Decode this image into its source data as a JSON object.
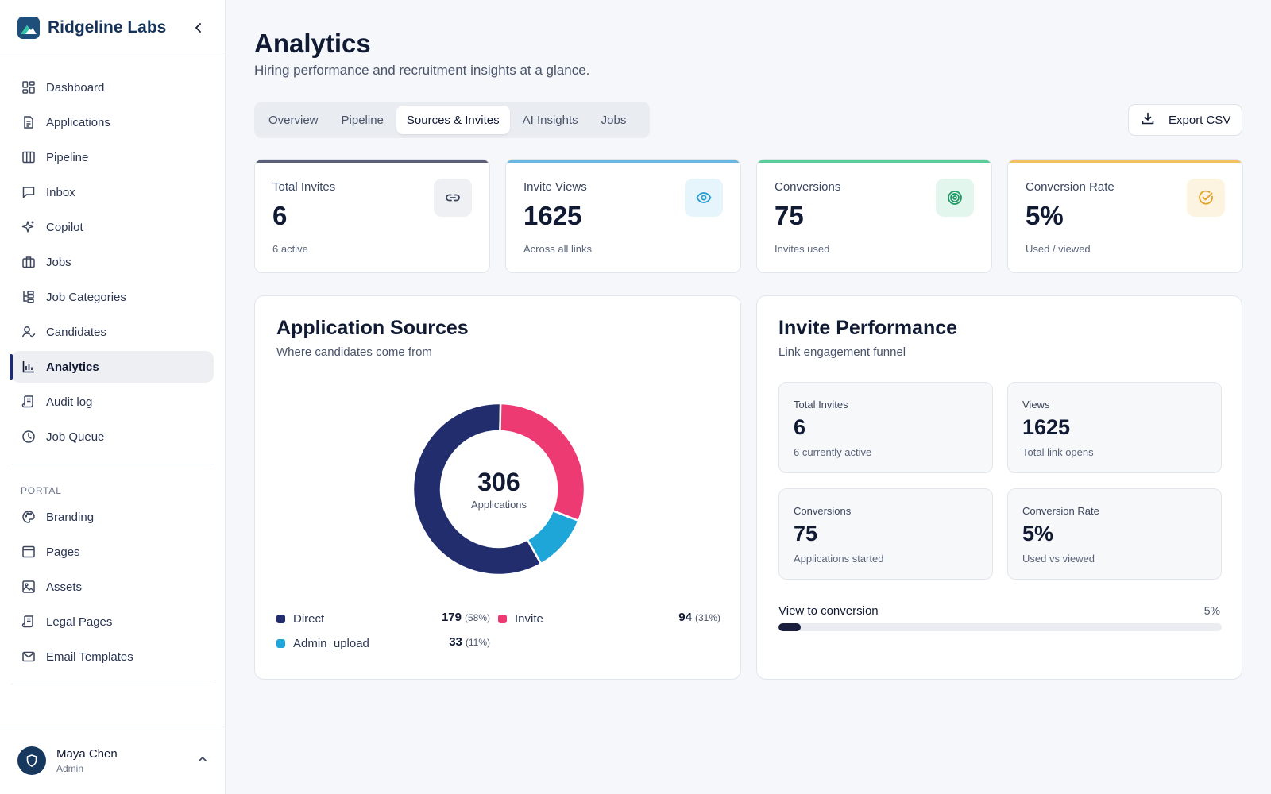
{
  "brand": {
    "name": "Ridgeline Labs"
  },
  "sidebar": {
    "items": [
      {
        "label": "Dashboard",
        "icon": "dashboard-icon"
      },
      {
        "label": "Applications",
        "icon": "document-icon"
      },
      {
        "label": "Pipeline",
        "icon": "columns-icon"
      },
      {
        "label": "Inbox",
        "icon": "message-icon"
      },
      {
        "label": "Copilot",
        "icon": "sparkle-icon"
      },
      {
        "label": "Jobs",
        "icon": "briefcase-icon"
      },
      {
        "label": "Job Categories",
        "icon": "tree-icon"
      },
      {
        "label": "Candidates",
        "icon": "user-check-icon"
      },
      {
        "label": "Analytics",
        "icon": "bar-chart-icon",
        "active": true
      },
      {
        "label": "Audit log",
        "icon": "scroll-icon"
      },
      {
        "label": "Job Queue",
        "icon": "clock-icon"
      }
    ],
    "portal_label": "PORTAL",
    "portal_items": [
      {
        "label": "Branding",
        "icon": "palette-icon"
      },
      {
        "label": "Pages",
        "icon": "layout-icon"
      },
      {
        "label": "Assets",
        "icon": "image-icon"
      },
      {
        "label": "Legal Pages",
        "icon": "scroll-icon"
      },
      {
        "label": "Email Templates",
        "icon": "mail-icon"
      }
    ]
  },
  "profile": {
    "name": "Maya Chen",
    "role": "Admin"
  },
  "header": {
    "title": "Analytics",
    "subtitle": "Hiring performance and recruitment insights at a glance."
  },
  "tabs": [
    {
      "label": "Overview"
    },
    {
      "label": "Pipeline"
    },
    {
      "label": "Sources & Invites",
      "active": true
    },
    {
      "label": "AI Insights"
    },
    {
      "label": "Jobs"
    }
  ],
  "export": {
    "label": "Export CSV"
  },
  "kpis": [
    {
      "label": "Total Invites",
      "value": "6",
      "sub": "6 active",
      "accent": "#5b5f77",
      "icon": "link-icon",
      "icon_bg": "#eef0f3",
      "icon_color": "#3b455c"
    },
    {
      "label": "Invite Views",
      "value": "1625",
      "sub": "Across all links",
      "accent": "#6ab7e3",
      "icon": "eye-icon",
      "icon_bg": "#e6f4fb",
      "icon_color": "#2a9ccc"
    },
    {
      "label": "Conversions",
      "value": "75",
      "sub": "Invites used",
      "accent": "#5ccd9a",
      "icon": "target-icon",
      "icon_bg": "#e3f6ee",
      "icon_color": "#1f9c66"
    },
    {
      "label": "Conversion Rate",
      "value": "5%",
      "sub": "Used / viewed",
      "accent": "#f2c260",
      "icon": "check-circle-icon",
      "icon_bg": "#fdf3e1",
      "icon_color": "#e0a224"
    }
  ],
  "sources": {
    "title": "Application Sources",
    "subtitle": "Where candidates come from",
    "total": "306",
    "total_caption": "Applications"
  },
  "chart_data": {
    "type": "pie",
    "categories": [
      "Direct",
      "Invite",
      "Admin_upload"
    ],
    "values": [
      179,
      94,
      33
    ],
    "percents": [
      "(58%)",
      "(31%)",
      "(11%)"
    ],
    "colors": [
      "#222d6e",
      "#ee3a72",
      "#1ea6d8"
    ],
    "legend": "bottom"
  },
  "invite": {
    "title": "Invite Performance",
    "subtitle": "Link engagement funnel",
    "tiles": [
      {
        "label": "Total Invites",
        "value": "6",
        "sub": "6 currently active"
      },
      {
        "label": "Views",
        "value": "1625",
        "sub": "Total link opens"
      },
      {
        "label": "Conversions",
        "value": "75",
        "sub": "Applications started"
      },
      {
        "label": "Conversion Rate",
        "value": "5%",
        "sub": "Used vs viewed"
      }
    ],
    "progress_label": "View to conversion",
    "progress_text": "5%",
    "progress_value": 0.05
  }
}
